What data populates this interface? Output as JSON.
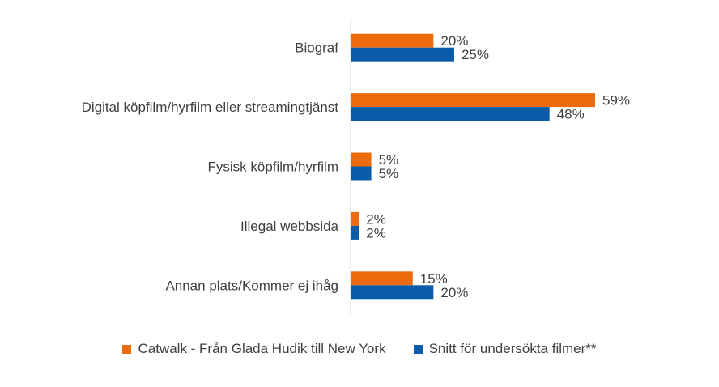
{
  "chart_data": {
    "type": "bar",
    "orientation": "horizontal",
    "categories": [
      "Biograf",
      "Digital köpfilm/hyrfilm eller streamingtjänst",
      "Fysisk köpfilm/hyrfilm",
      "Illegal webbsida",
      "Annan plats/Kommer ej ihåg"
    ],
    "series": [
      {
        "name": "Catwalk - Från Glada Hudik till New York",
        "color": "#ED6B0C",
        "values": [
          20,
          59,
          5,
          2,
          15
        ]
      },
      {
        "name": "Snitt för undersökta filmer**",
        "color": "#0A5CA8",
        "values": [
          25,
          48,
          5,
          2,
          20
        ]
      }
    ],
    "value_suffix": "%",
    "xlim": [
      0,
      70
    ],
    "grid": false,
    "legend_position": "bottom"
  }
}
